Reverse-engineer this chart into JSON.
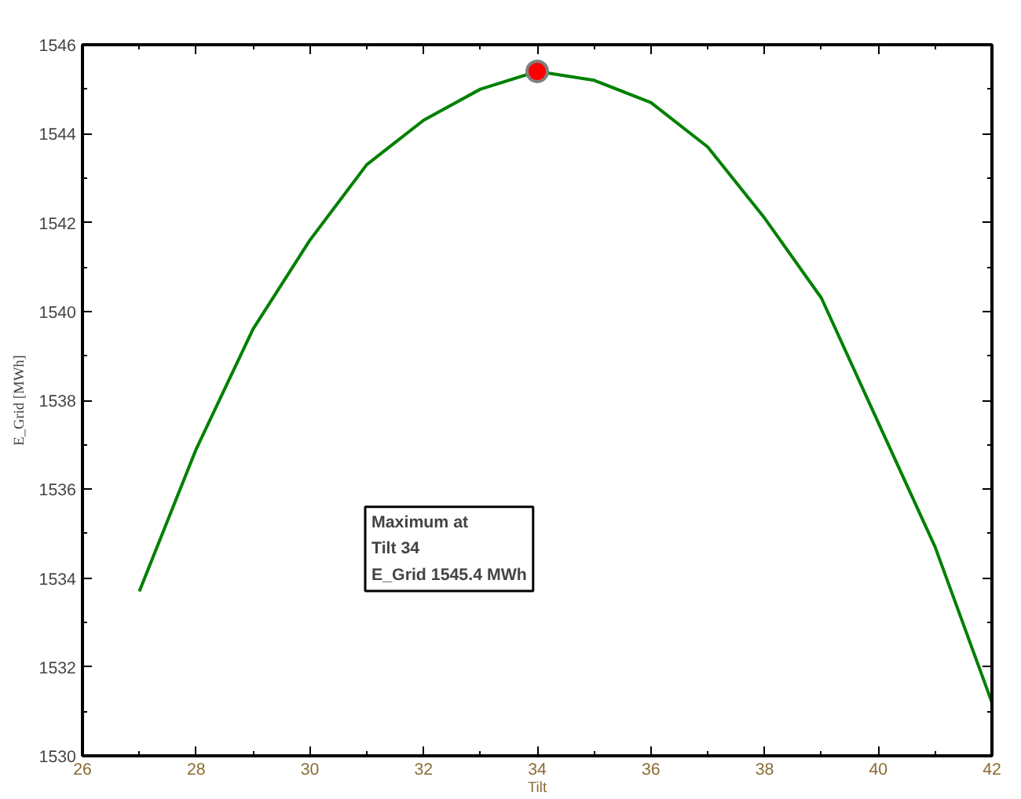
{
  "chart_data": {
    "type": "line",
    "xlabel": "Tilt",
    "ylabel": "E_Grid [MWh]",
    "x": [
      27,
      28,
      29,
      30,
      31,
      32,
      33,
      34,
      35,
      36,
      37,
      38,
      39,
      40,
      41,
      42
    ],
    "series": [
      {
        "color": "#008000",
        "values": [
          1533.7,
          1536.9,
          1539.6,
          1541.6,
          1543.3,
          1544.3,
          1545.0,
          1545.4,
          1545.2,
          1544.7,
          1543.7,
          1542.1,
          1540.3,
          1537.5,
          1534.7,
          1531.2
        ]
      },
      {
        "type": "scatter",
        "color": "#ff0000",
        "marker": "circle",
        "x": [
          34
        ],
        "values": [
          1545.4
        ]
      }
    ],
    "xlim": [
      26,
      42
    ],
    "xticks": [
      26,
      28,
      30,
      32,
      34,
      36,
      38,
      40,
      42
    ],
    "ylim": [
      1530,
      1546
    ],
    "yticks": [
      1530,
      1532,
      1534,
      1536,
      1538,
      1540,
      1542,
      1544,
      1546
    ],
    "grid": false,
    "annotations": [
      "Maximum at\nTilt 34\nE_Grid 1545.4 MWh"
    ]
  }
}
